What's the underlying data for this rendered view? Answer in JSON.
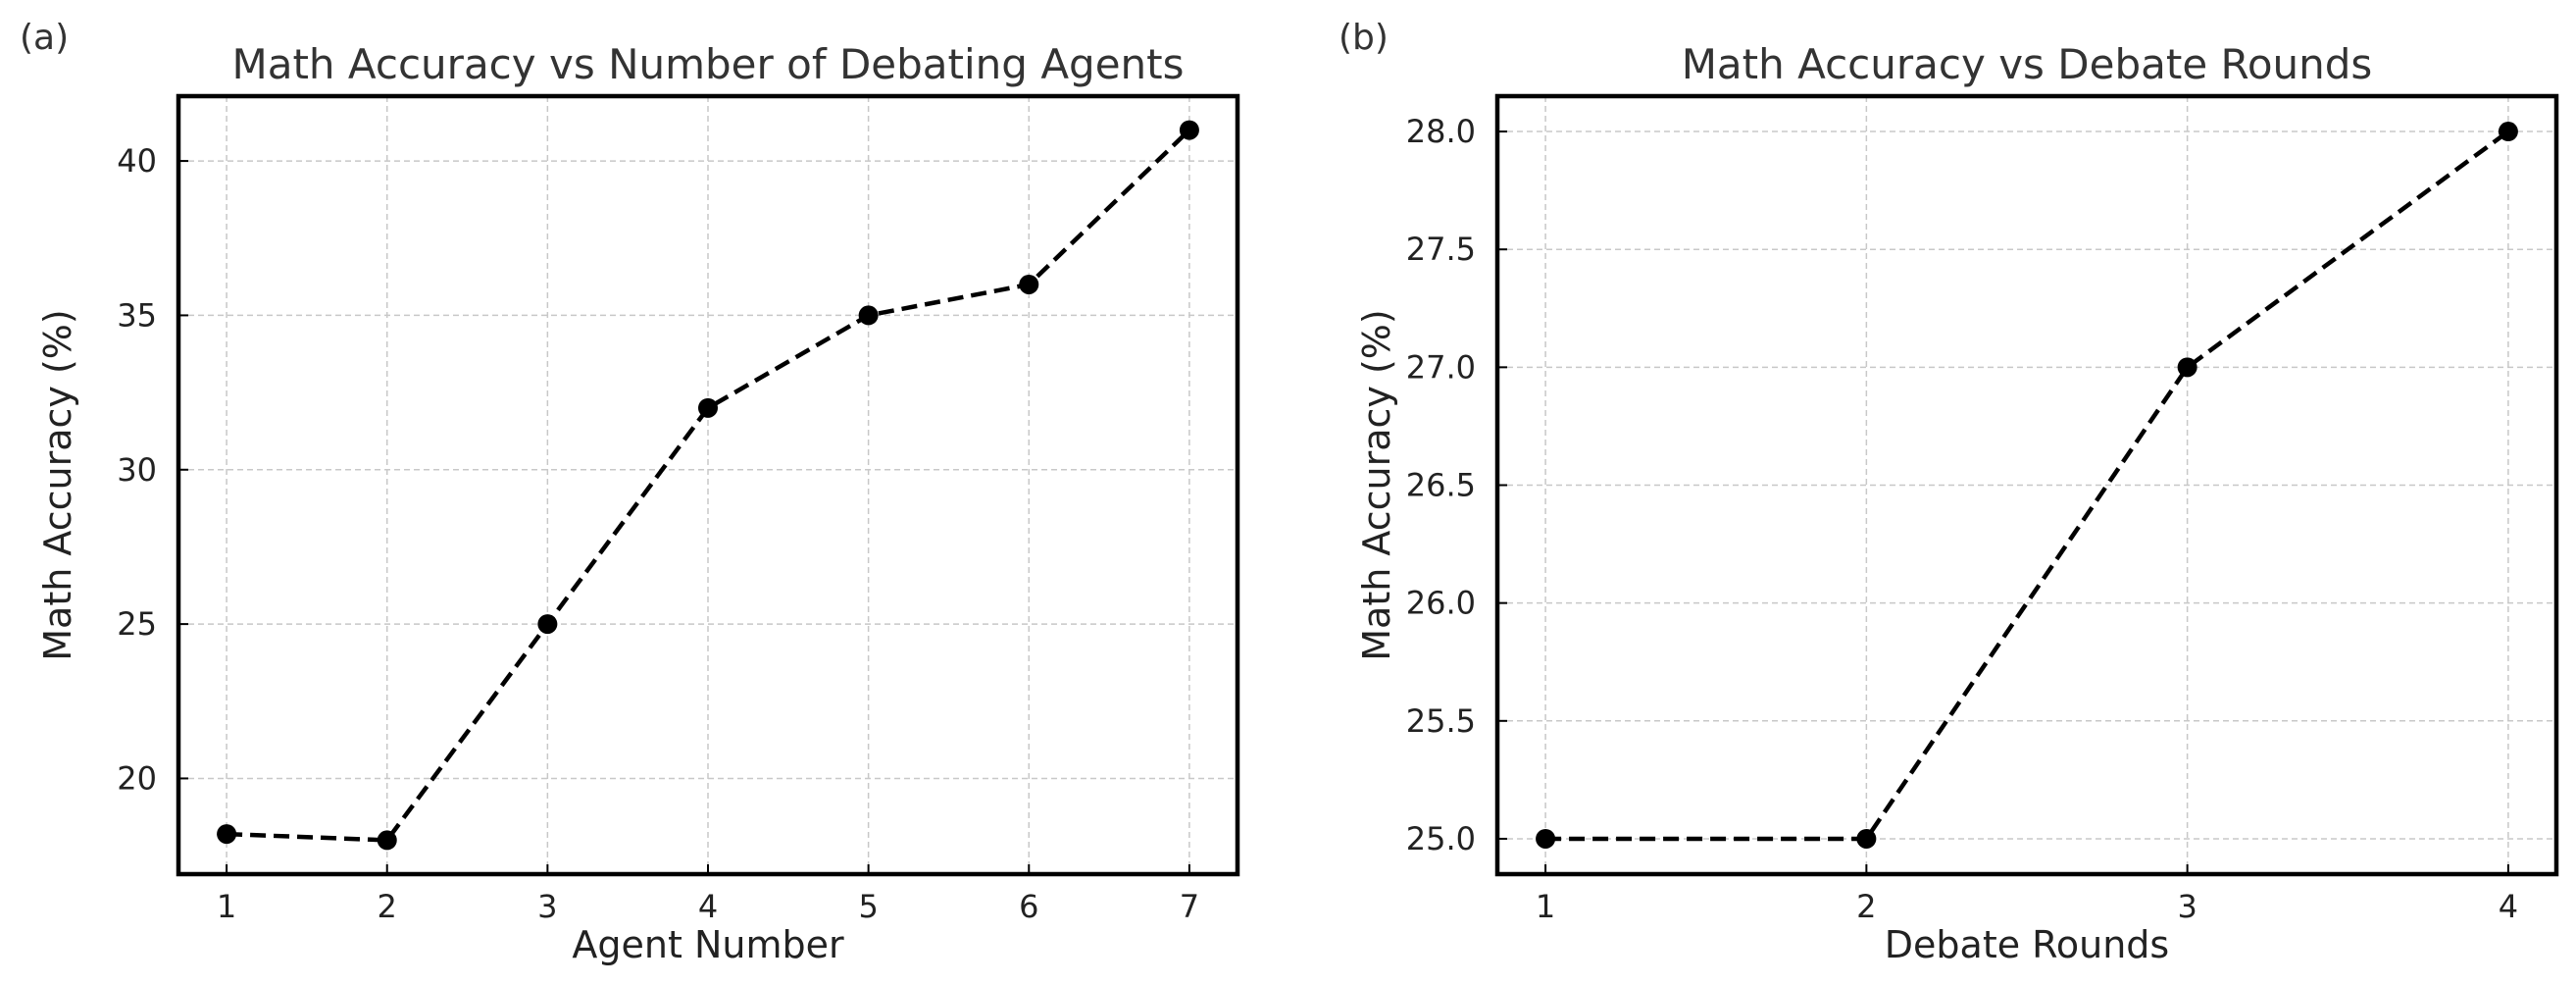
{
  "chart_data": [
    {
      "type": "line",
      "panel_label": "(a)",
      "title": "Math Accuracy vs Number of Debating Agents",
      "xlabel": "Agent Number",
      "ylabel": "Math Accuracy (%)",
      "x": [
        1,
        2,
        3,
        4,
        5,
        6,
        7
      ],
      "y": [
        18.2,
        18.0,
        25.0,
        32.0,
        35.0,
        36.0,
        41.0
      ],
      "xlim": [
        0.7,
        7.3
      ],
      "ylim": [
        16.9,
        42.1
      ],
      "xticks": [
        1,
        2,
        3,
        4,
        5,
        6,
        7
      ],
      "yticks": [
        20,
        25,
        30,
        35,
        40
      ],
      "ytick_labels": [
        "20",
        "25",
        "30",
        "35",
        "40"
      ],
      "grid": true,
      "line_style": "dashed",
      "marker": "circle",
      "color": "#000000"
    },
    {
      "type": "line",
      "panel_label": "(b)",
      "title": "Math Accuracy vs Debate Rounds",
      "xlabel": "Debate Rounds",
      "ylabel": "Math Accuracy (%)",
      "x": [
        1,
        2,
        3,
        4
      ],
      "y": [
        25.0,
        25.0,
        27.0,
        28.0
      ],
      "xlim": [
        0.85,
        4.15
      ],
      "ylim": [
        24.85,
        28.15
      ],
      "xticks": [
        1,
        2,
        3,
        4
      ],
      "yticks": [
        25.0,
        25.5,
        26.0,
        26.5,
        27.0,
        27.5,
        28.0
      ],
      "ytick_labels": [
        "25.0",
        "25.5",
        "26.0",
        "26.5",
        "27.0",
        "27.5",
        "28.0"
      ],
      "grid": true,
      "line_style": "dashed",
      "marker": "circle",
      "color": "#000000"
    }
  ]
}
